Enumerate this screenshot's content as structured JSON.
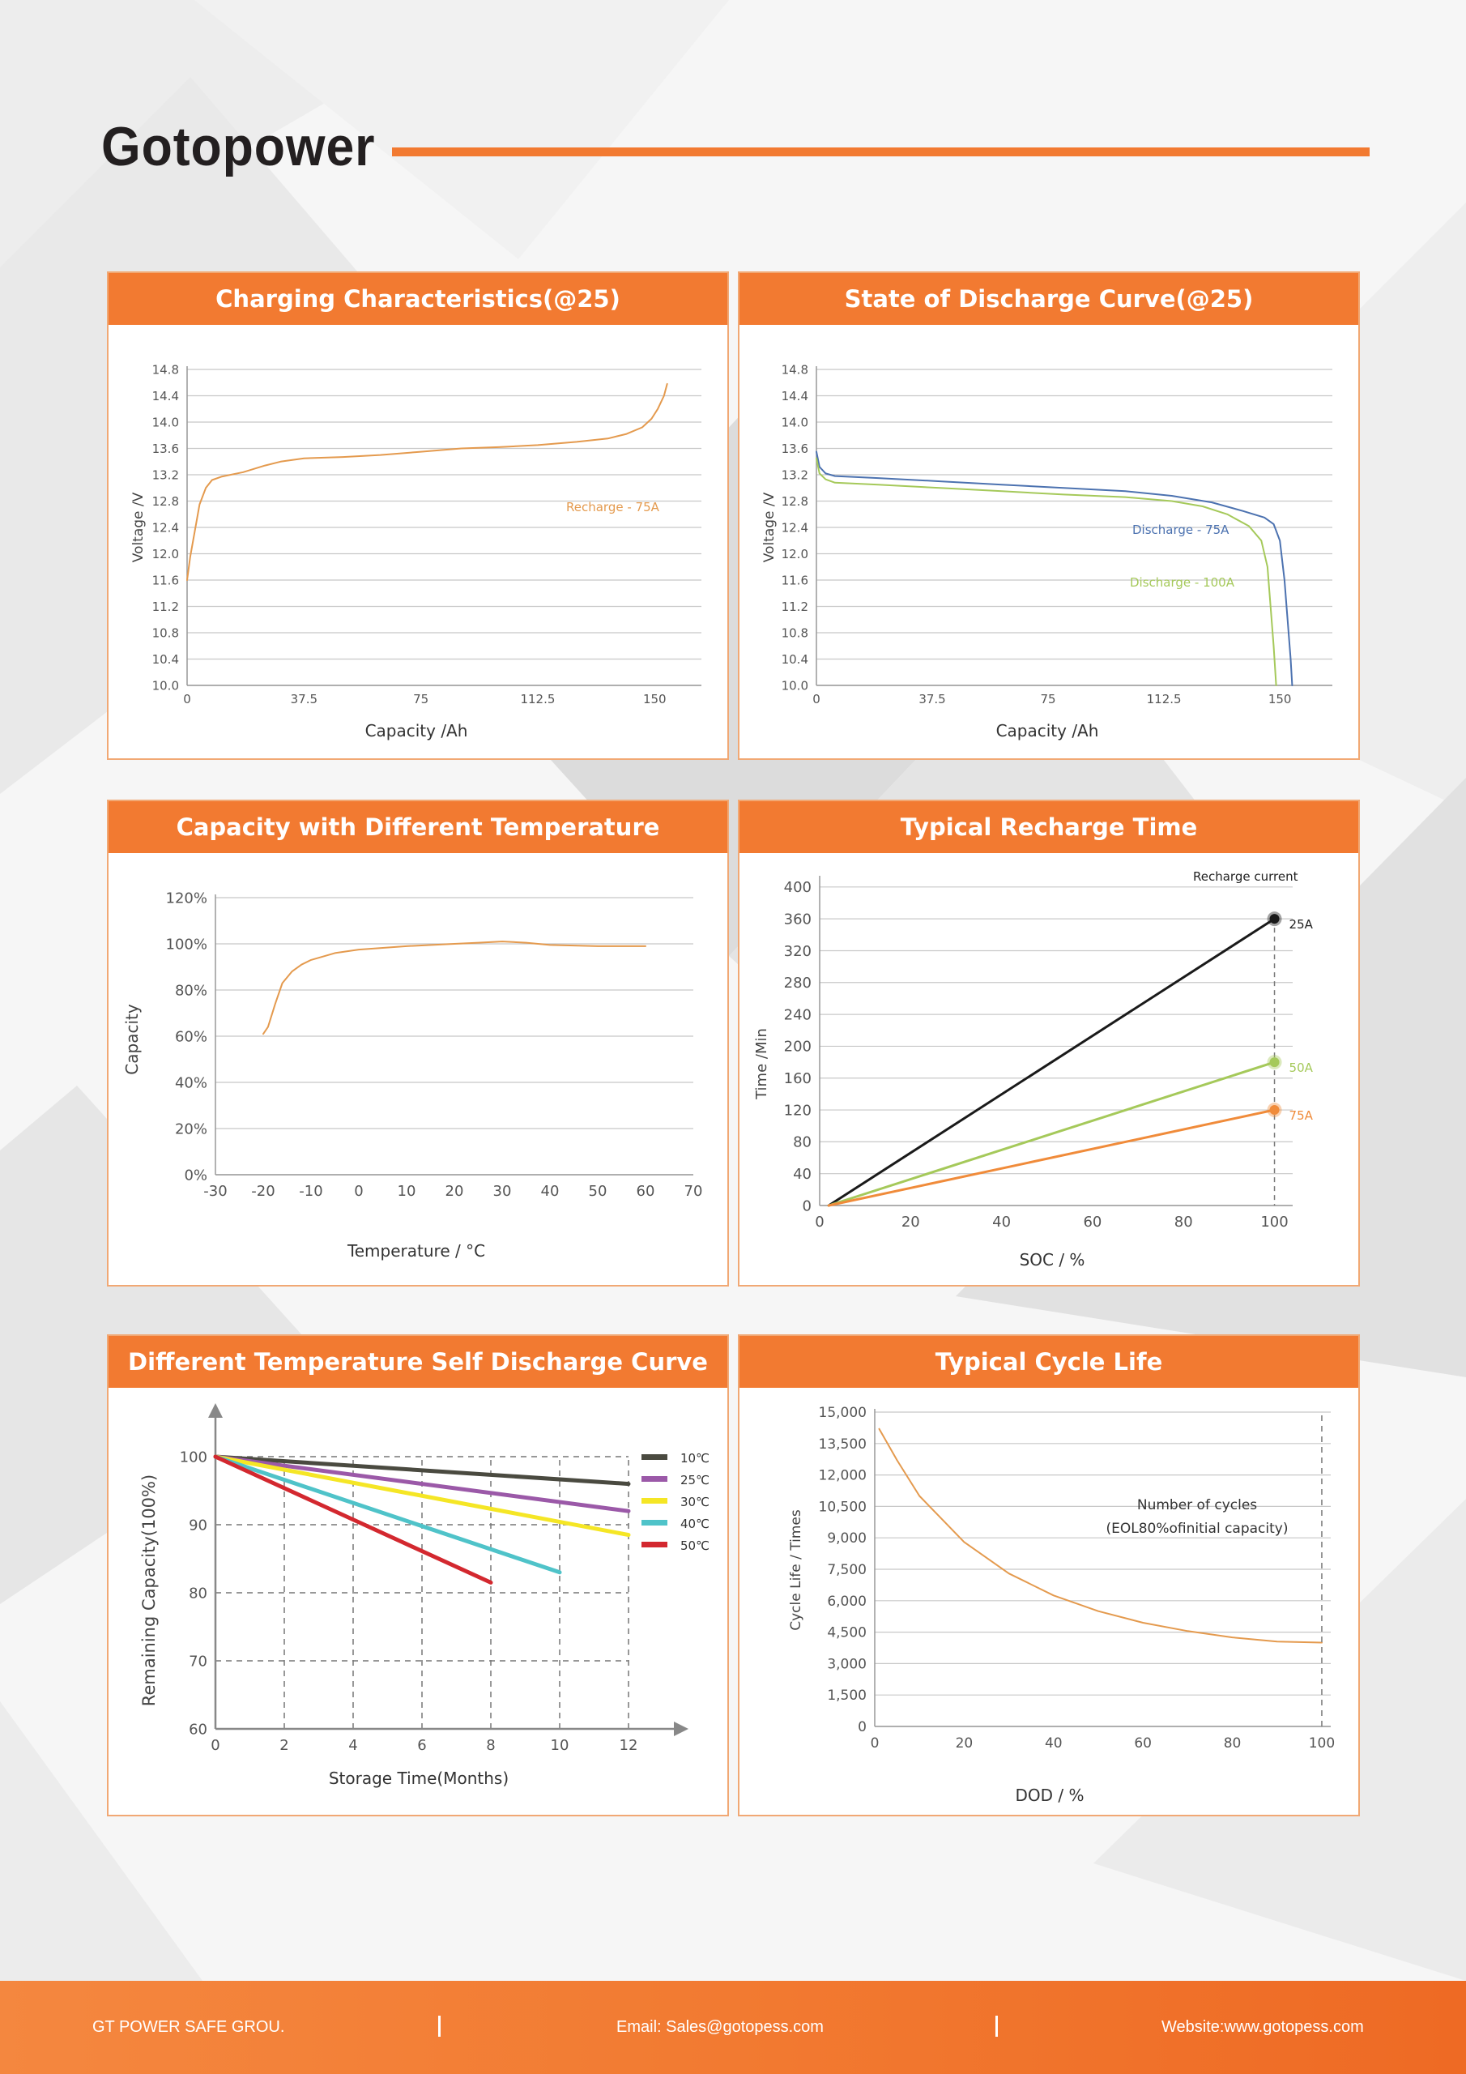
{
  "brand": {
    "name": "Gotopower",
    "accent": "#f27a31"
  },
  "panels": {
    "p1": {
      "title": "Charging Characteristics(@25)"
    },
    "p2": {
      "title": "State of Discharge Curve(@25)"
    },
    "p3": {
      "title": "Capacity with Different Temperature"
    },
    "p4": {
      "title": "Typical Recharge Time"
    },
    "p5": {
      "title": "Different Temperature Self Discharge Curve"
    },
    "p6": {
      "title": "Typical Cycle Life"
    }
  },
  "footer": {
    "company": "GT POWER SAFE GROU.",
    "email": "Email: Sales@gotopess.com",
    "website": "Website:www.gotopess.com"
  },
  "chart_data": [
    {
      "id": "charging",
      "type": "line",
      "title": "Charging Characteristics(@25)",
      "xlabel": "Capacity  /Ah",
      "ylabel": "Voltage  /V",
      "xlim": [
        0,
        165
      ],
      "ylim": [
        10.0,
        14.8
      ],
      "x_ticks": [
        0,
        37.5,
        75,
        112.5,
        150
      ],
      "x_tick_labels": [
        "0",
        "37.5",
        "75",
        "112.5",
        "150"
      ],
      "y_ticks": [
        10.0,
        10.4,
        10.8,
        11.2,
        11.6,
        12.0,
        12.4,
        12.8,
        13.2,
        13.6,
        14.0,
        14.4,
        14.8
      ],
      "y_tick_labels": [
        "10.0",
        "10.4",
        "10.8",
        "11.2",
        "11.6",
        "12.0",
        "12.4",
        "12.8",
        "13.2",
        "13.6",
        "14.0",
        "14.4",
        "14.8"
      ],
      "series": [
        {
          "name": "Recharge - 75A",
          "color": "#e49a4e",
          "points": [
            [
              0,
              11.6
            ],
            [
              1,
              11.95
            ],
            [
              2.5,
              12.35
            ],
            [
              4,
              12.75
            ],
            [
              6,
              13.0
            ],
            [
              8,
              13.12
            ],
            [
              11,
              13.17
            ],
            [
              18,
              13.24
            ],
            [
              25,
              13.34
            ],
            [
              30,
              13.4
            ],
            [
              37.5,
              13.45
            ],
            [
              50,
              13.47
            ],
            [
              62,
              13.5
            ],
            [
              75,
              13.55
            ],
            [
              88,
              13.6
            ],
            [
              100,
              13.62
            ],
            [
              112.5,
              13.65
            ],
            [
              125,
              13.7
            ],
            [
              135,
              13.75
            ],
            [
              141,
              13.82
            ],
            [
              146,
              13.92
            ],
            [
              149,
              14.05
            ],
            [
              151,
              14.2
            ],
            [
              153,
              14.4
            ],
            [
              154,
              14.58
            ]
          ]
        }
      ]
    },
    {
      "id": "discharge",
      "type": "line",
      "title": "State of Discharge Curve(@25)",
      "xlabel": "Capacity  /Ah",
      "ylabel": "Voltage  /V",
      "xlim": [
        0,
        167
      ],
      "ylim": [
        10.0,
        14.8
      ],
      "x_ticks": [
        0,
        37.5,
        75,
        112.5,
        150
      ],
      "x_tick_labels": [
        "0",
        "37.5",
        "75",
        "112.5",
        "150"
      ],
      "y_ticks": [
        10.0,
        10.4,
        10.8,
        11.2,
        11.6,
        12.0,
        12.4,
        12.8,
        13.2,
        13.6,
        14.0,
        14.4,
        14.8
      ],
      "y_tick_labels": [
        "10.0",
        "10.4",
        "10.8",
        "11.2",
        "11.6",
        "12.0",
        "12.4",
        "12.8",
        "13.2",
        "13.6",
        "14.0",
        "14.4",
        "14.8"
      ],
      "series": [
        {
          "name": "Discharge - 75A",
          "color": "#4c72b0",
          "points": [
            [
              0,
              13.55
            ],
            [
              1,
              13.32
            ],
            [
              3,
              13.22
            ],
            [
              6,
              13.18
            ],
            [
              20,
              13.15
            ],
            [
              40,
              13.1
            ],
            [
              60,
              13.05
            ],
            [
              80,
              13.0
            ],
            [
              100,
              12.95
            ],
            [
              115,
              12.88
            ],
            [
              128,
              12.78
            ],
            [
              138,
              12.65
            ],
            [
              145,
              12.55
            ],
            [
              148,
              12.45
            ],
            [
              150,
              12.2
            ],
            [
              151.5,
              11.6
            ],
            [
              152.5,
              11.0
            ],
            [
              153.5,
              10.4
            ],
            [
              154,
              10.0
            ]
          ]
        },
        {
          "name": "Discharge - 100A",
          "color": "#a5c95a",
          "points": [
            [
              0,
              13.45
            ],
            [
              1,
              13.22
            ],
            [
              3,
              13.13
            ],
            [
              6,
              13.08
            ],
            [
              20,
              13.05
            ],
            [
              40,
              13.0
            ],
            [
              60,
              12.95
            ],
            [
              80,
              12.9
            ],
            [
              100,
              12.86
            ],
            [
              115,
              12.8
            ],
            [
              125,
              12.72
            ],
            [
              133,
              12.6
            ],
            [
              140,
              12.42
            ],
            [
              144,
              12.2
            ],
            [
              146,
              11.8
            ],
            [
              147,
              11.2
            ],
            [
              148,
              10.6
            ],
            [
              148.8,
              10.0
            ]
          ]
        }
      ]
    },
    {
      "id": "temperature",
      "type": "line",
      "title": "Capacity with Different Temperature",
      "xlabel": "Temperature / °C",
      "ylabel": "Capacity",
      "xlim": [
        -30,
        70
      ],
      "ylim": [
        0,
        120
      ],
      "x_ticks": [
        -30,
        -20,
        -10,
        0,
        10,
        20,
        30,
        40,
        50,
        60,
        70
      ],
      "x_tick_labels": [
        "-30",
        "-20",
        "-10",
        "0",
        "10",
        "20",
        "30",
        "40",
        "50",
        "60",
        "70"
      ],
      "y_ticks": [
        0,
        20,
        40,
        60,
        80,
        100,
        120
      ],
      "y_tick_labels": [
        "0%",
        "20%",
        "40%",
        "60%",
        "80%",
        "100%",
        "120%"
      ],
      "series": [
        {
          "name": "Capacity",
          "color": "#e49a4e",
          "points": [
            [
              -20,
              61
            ],
            [
              -19,
              64
            ],
            [
              -17.5,
              74
            ],
            [
              -16,
              83
            ],
            [
              -14,
              88
            ],
            [
              -12,
              91
            ],
            [
              -10,
              93
            ],
            [
              -5,
              96
            ],
            [
              0,
              97.5
            ],
            [
              10,
              99
            ],
            [
              20,
              100
            ],
            [
              25,
              100.5
            ],
            [
              30,
              101
            ],
            [
              35,
              100.5
            ],
            [
              40,
              99.5
            ],
            [
              50,
              99
            ],
            [
              60,
              99
            ]
          ]
        }
      ]
    },
    {
      "id": "recharge-time",
      "type": "line",
      "title": "Typical Recharge Time",
      "xlabel": "SOC / %",
      "ylabel": "Time /Min",
      "legend_title": "Recharge current",
      "xlim": [
        0,
        104
      ],
      "ylim": [
        0,
        410
      ],
      "x_ticks": [
        0,
        20,
        40,
        60,
        80,
        100
      ],
      "x_tick_labels": [
        "0",
        "20",
        "40",
        "60",
        "80",
        "100"
      ],
      "y_ticks": [
        0,
        40,
        80,
        120,
        160,
        200,
        240,
        280,
        320,
        360,
        400
      ],
      "y_tick_labels": [
        "0",
        "40",
        "80",
        "120",
        "160",
        "200",
        "240",
        "280",
        "320",
        "360",
        "400"
      ],
      "series": [
        {
          "name": "25A",
          "color": "#1a1a1a",
          "points": [
            [
              2,
              0
            ],
            [
              100,
              360
            ]
          ]
        },
        {
          "name": "50A",
          "color": "#a5c95a",
          "points": [
            [
              2,
              0
            ],
            [
              100,
              180
            ]
          ]
        },
        {
          "name": "75A",
          "color": "#f08b3a",
          "points": [
            [
              2,
              0
            ],
            [
              100,
              120
            ]
          ]
        }
      ]
    },
    {
      "id": "self-discharge",
      "type": "line",
      "title": "Different Temperature Self Discharge Curve",
      "xlabel": "Storage Time(Months)",
      "ylabel": "Remaining Capacity(100%)",
      "xlim": [
        0,
        12
      ],
      "ylim": [
        60,
        100
      ],
      "x_ticks": [
        0,
        2,
        4,
        6,
        8,
        10,
        12
      ],
      "x_tick_labels": [
        "0",
        "2",
        "4",
        "6",
        "8",
        "10",
        "12"
      ],
      "y_ticks": [
        60,
        70,
        80,
        90,
        100
      ],
      "y_tick_labels": [
        "60",
        "70",
        "80",
        "90",
        "100"
      ],
      "series": [
        {
          "name": "10℃",
          "color": "#4a4a40",
          "points": [
            [
              0,
              100
            ],
            [
              12,
              96
            ]
          ]
        },
        {
          "name": "25℃",
          "color": "#9b59a8",
          "points": [
            [
              0,
              100
            ],
            [
              12,
              92
            ]
          ]
        },
        {
          "name": "30℃",
          "color": "#f5e625",
          "points": [
            [
              0,
              100
            ],
            [
              12,
              88.5
            ]
          ]
        },
        {
          "name": "40℃",
          "color": "#4fc3c9",
          "points": [
            [
              0,
              100
            ],
            [
              10,
              83
            ]
          ]
        },
        {
          "name": "50℃",
          "color": "#d3282f",
          "points": [
            [
              0,
              100
            ],
            [
              8,
              81.5
            ]
          ]
        }
      ]
    },
    {
      "id": "cycle-life",
      "type": "line",
      "title": "Typical Cycle Life",
      "xlabel": "DOD / %",
      "ylabel": "Cycle Life / Times",
      "annotation": [
        "Number of cycles",
        "(EOL80%ofinitial capacity)"
      ],
      "xlim": [
        0,
        102
      ],
      "ylim": [
        0,
        15000
      ],
      "x_ticks": [
        0,
        20,
        40,
        60,
        80,
        100
      ],
      "x_tick_labels": [
        "0",
        "20",
        "40",
        "60",
        "80",
        "100"
      ],
      "y_ticks": [
        0,
        1500,
        3000,
        4500,
        6000,
        7500,
        9000,
        10500,
        12000,
        13500,
        15000
      ],
      "y_tick_labels": [
        "0",
        "1,500",
        "3,000",
        "4,500",
        "6,000",
        "7,500",
        "9,000",
        "10,500",
        "12,000",
        "13,500",
        "15,000"
      ],
      "series": [
        {
          "name": "Cycle life",
          "color": "#e49a4e",
          "points": [
            [
              1,
              14200
            ],
            [
              5,
              12700
            ],
            [
              10,
              11000
            ],
            [
              20,
              8800
            ],
            [
              30,
              7300
            ],
            [
              40,
              6250
            ],
            [
              50,
              5500
            ],
            [
              60,
              4950
            ],
            [
              70,
              4550
            ],
            [
              80,
              4250
            ],
            [
              90,
              4050
            ],
            [
              100,
              4000
            ]
          ]
        }
      ]
    }
  ]
}
